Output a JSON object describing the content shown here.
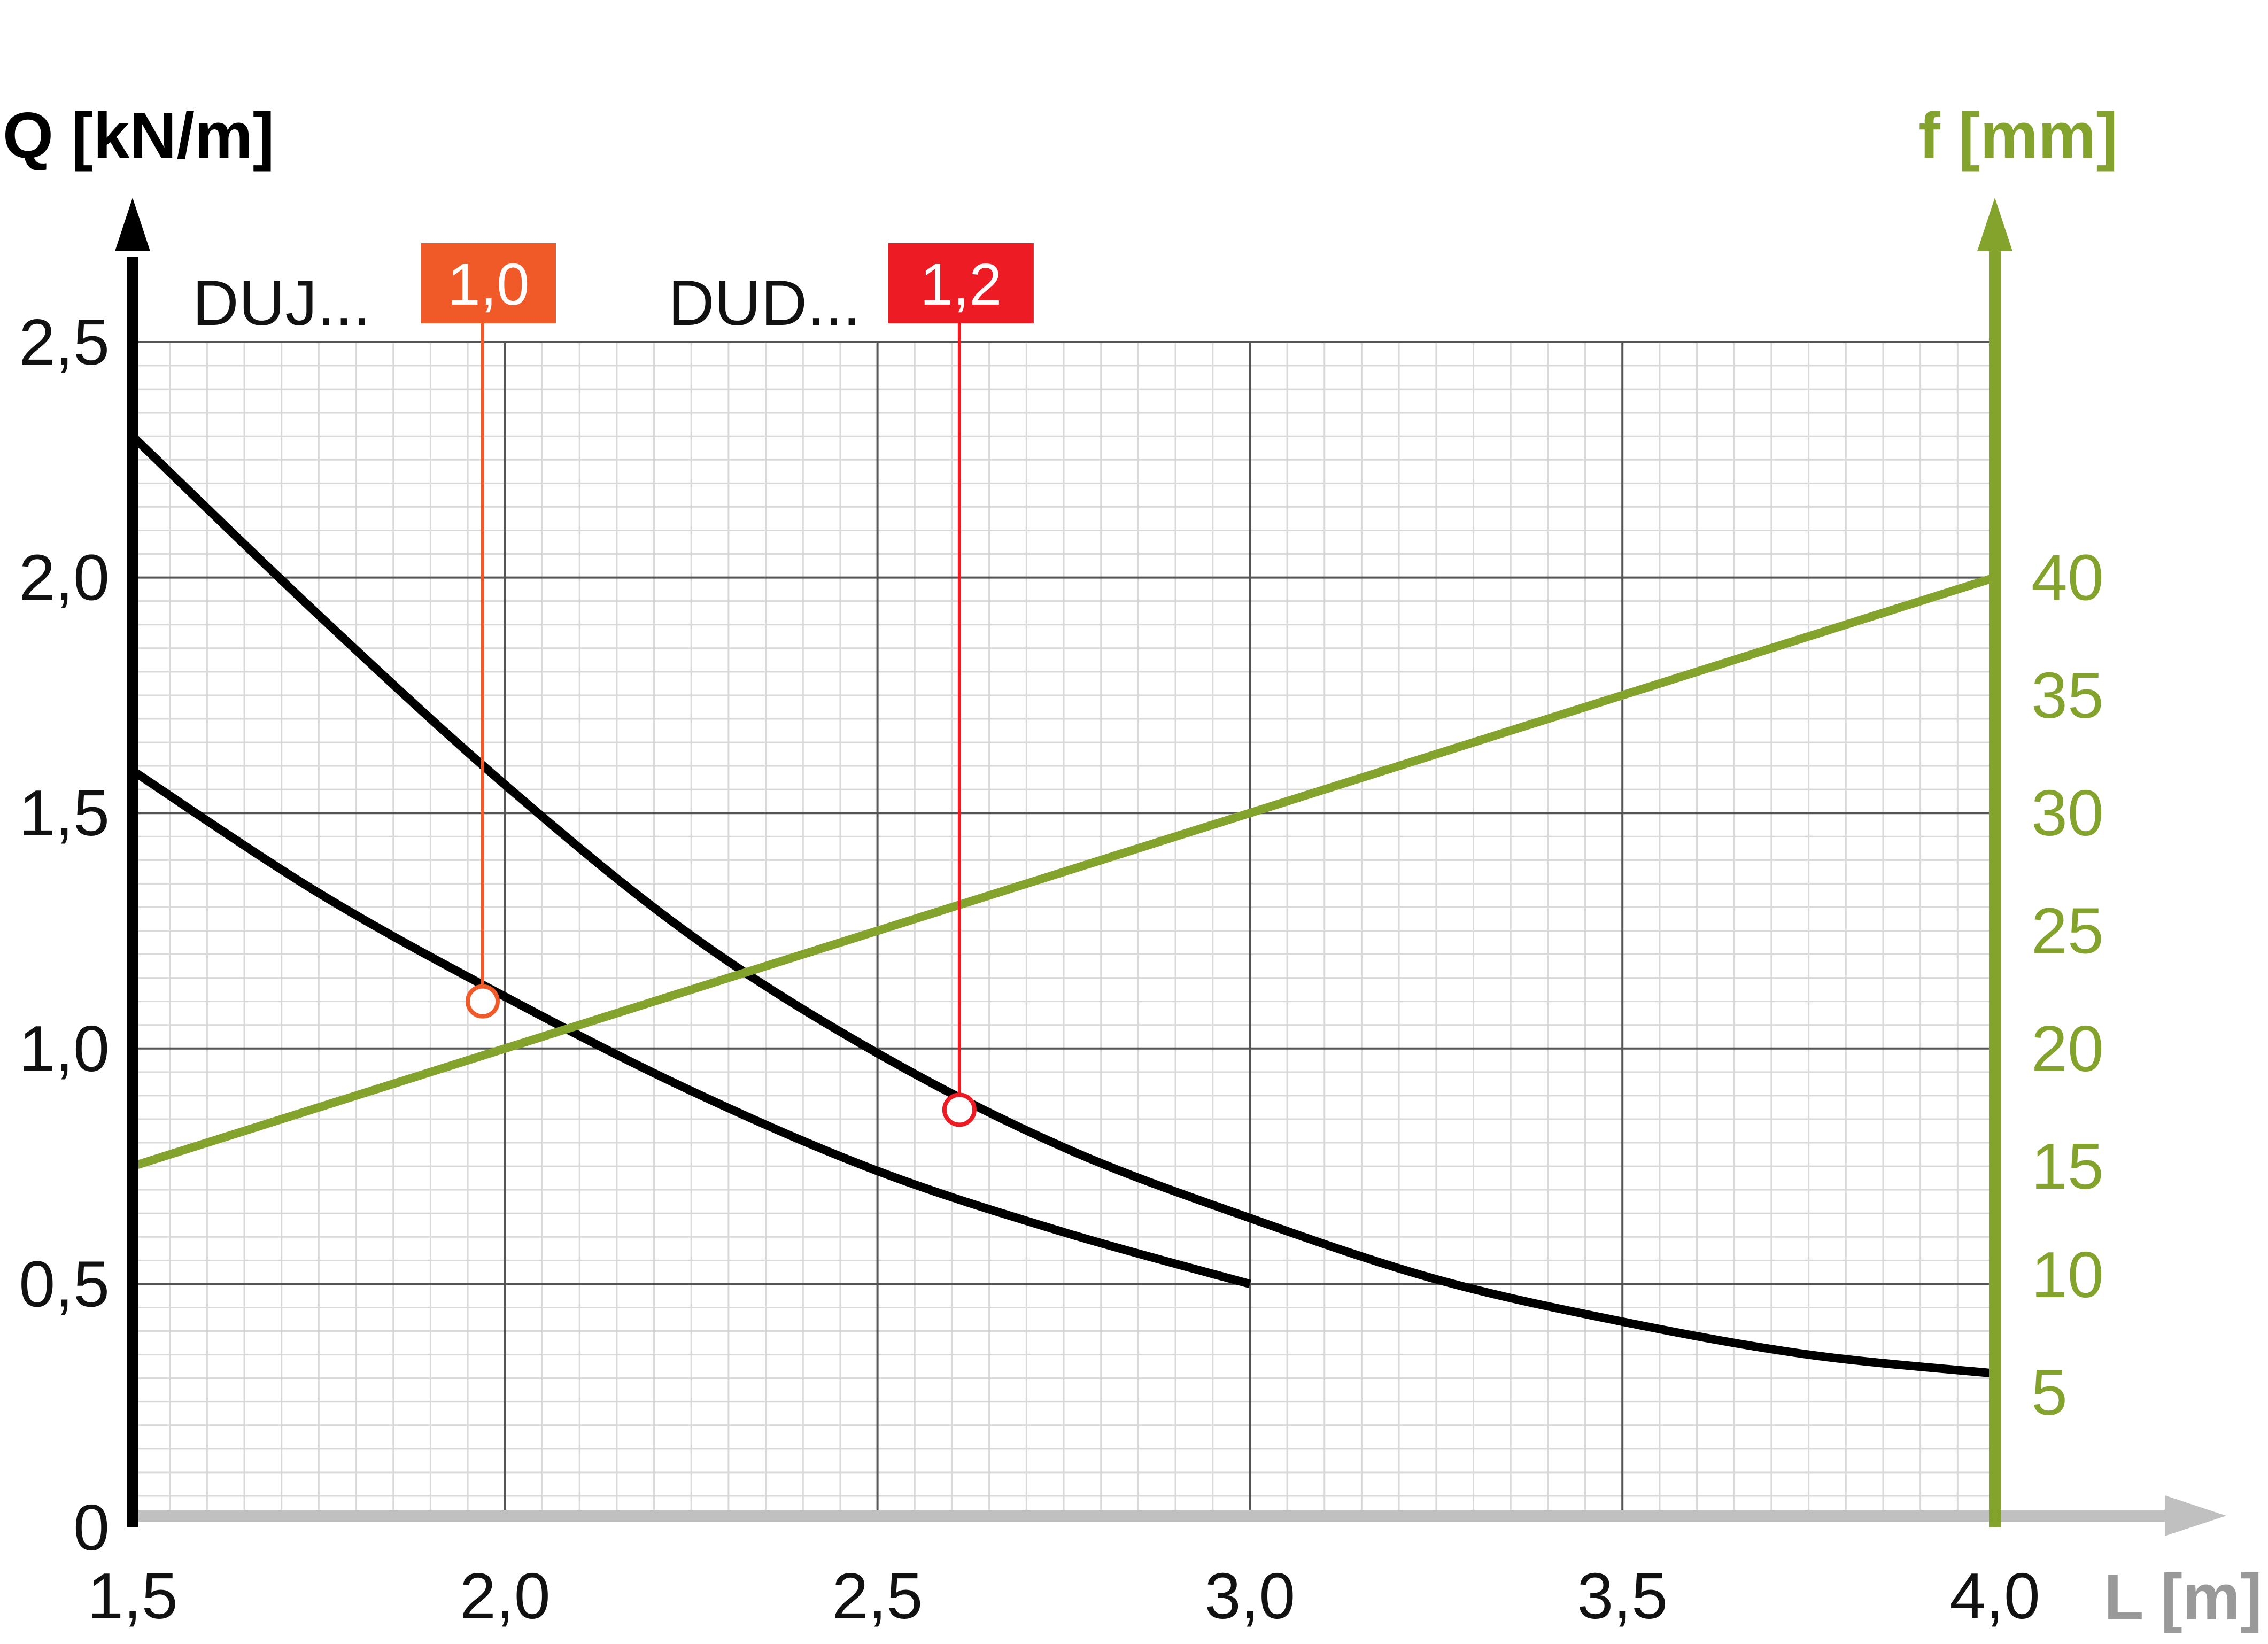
{
  "chart_data": {
    "type": "line",
    "ylabel_left": "Q [kN/m]",
    "ylabel_right": "f [mm]",
    "xlabel": "L [m]",
    "x_range": [
      1.5,
      4.0
    ],
    "x_ticks": [
      1.5,
      2.0,
      2.5,
      3.0,
      3.5,
      4.0
    ],
    "x_tick_labels": [
      "1,5",
      "2,0",
      "2,5",
      "3,0",
      "3,5",
      "4,0"
    ],
    "y_left_range": [
      0,
      2.5
    ],
    "y_left_ticks": [
      0,
      0.5,
      1.0,
      1.5,
      2.0,
      2.5
    ],
    "y_left_tick_labels": [
      "0",
      "0,5",
      "1,0",
      "1,5",
      "2,0",
      "2,5"
    ],
    "y_right_ticks": [
      {
        "label": "40",
        "q": 2.0
      },
      {
        "label": "35",
        "q": 1.75
      },
      {
        "label": "30",
        "q": 1.5
      },
      {
        "label": "25",
        "q": 1.25
      },
      {
        "label": "20",
        "q": 1.0
      },
      {
        "label": "15",
        "q": 0.75
      },
      {
        "label": "10",
        "q": 0.52
      },
      {
        "label": "5",
        "q": 0.27
      }
    ],
    "grid": true,
    "series": [
      {
        "label": "DUJ...",
        "badge": "1,0",
        "color": "#000000",
        "x": [
          1.5,
          1.75,
          2.0,
          2.25,
          2.5,
          2.75,
          3.0
        ],
        "y": [
          1.59,
          1.33,
          1.11,
          0.91,
          0.74,
          0.61,
          0.5
        ]
      },
      {
        "label": "DUD...",
        "badge": "1,2",
        "color": "#000000",
        "x": [
          1.5,
          1.75,
          2.0,
          2.25,
          2.5,
          2.75,
          3.0,
          3.25,
          3.5,
          3.75,
          4.0
        ],
        "y": [
          2.3,
          1.92,
          1.56,
          1.24,
          0.99,
          0.79,
          0.64,
          0.51,
          0.42,
          0.35,
          0.31
        ]
      },
      {
        "axis": "right",
        "color": "#84a32c",
        "x": [
          1.5,
          4.0
        ],
        "f": [
          15,
          40
        ]
      }
    ],
    "markers": [
      {
        "badge": "1,0",
        "color": "#f05a28",
        "x": 1.97,
        "y": 1.1
      },
      {
        "badge": "1,2",
        "color": "#ed1c24",
        "x": 2.61,
        "y": 0.87
      }
    ],
    "colors": {
      "left_axis": "#000000",
      "right_axis": "#84a32c",
      "x_axis": "#c0c0c0",
      "x_label": "#999999",
      "grid_major": "#555555",
      "grid_minor": "#d9d9d9"
    }
  }
}
